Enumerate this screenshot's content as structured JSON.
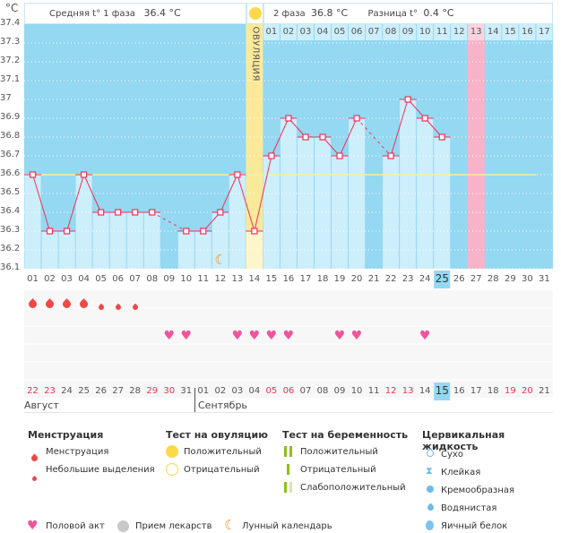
{
  "y_unit": "°C",
  "header": {
    "phase1_label": "Средняя t° 1 фаза",
    "phase1_value": "36.4 °C",
    "phase2_label": "2 фаза",
    "phase2_value": "36.8 °C",
    "diff_label": "Разница t°",
    "diff_value": "0.4 °C",
    "ovulation_label": "ОВУЛЯЦИЯ"
  },
  "colors": {
    "background": "#94d8f2",
    "bar": "#cdeefb",
    "line": "#f0305a",
    "ovulation": "#fbe99a",
    "highlight_day": "#f9b3c8",
    "coverline": "#f3f0a8"
  },
  "chart_data": {
    "type": "line",
    "ylim": [
      36.1,
      37.4
    ],
    "yticks": [
      "37.4",
      "37.3",
      "37.2",
      "37.1",
      "37",
      "36.9",
      "36.8",
      "36.7",
      "36.6",
      "36.5",
      "36.4",
      "36.3",
      "36.2",
      "36.1"
    ],
    "coverline": 36.6,
    "ovulation_day": 14,
    "highlight_day": 27,
    "today_day": 25,
    "cycle_days": [
      "01",
      "02",
      "03",
      "04",
      "05",
      "06",
      "07",
      "08",
      "09",
      "10",
      "11",
      "12",
      "13",
      "14",
      "15",
      "16",
      "17",
      "18",
      "19",
      "20",
      "21",
      "22",
      "23",
      "24",
      "25",
      "26",
      "27",
      "28",
      "29",
      "30",
      "31"
    ],
    "temperatures": [
      36.6,
      36.3,
      36.3,
      36.6,
      36.4,
      36.4,
      36.4,
      36.4,
      null,
      36.3,
      36.3,
      36.4,
      36.6,
      36.3,
      36.7,
      36.9,
      36.8,
      36.8,
      36.7,
      36.9,
      null,
      36.7,
      37.0,
      36.9,
      36.8,
      null,
      null,
      null,
      null,
      null,
      null
    ],
    "post_ovulation_days": [
      "01",
      "02",
      "03",
      "04",
      "05",
      "06",
      "07",
      "08",
      "09",
      "10",
      "11",
      "12",
      "13",
      "14",
      "15",
      "16",
      "17"
    ],
    "moon_day": 12
  },
  "markers": {
    "menstruation_heavy": [
      1,
      2,
      3,
      4
    ],
    "menstruation_light": [
      5,
      6,
      7
    ],
    "intercourse": [
      9,
      10,
      13,
      14,
      15,
      16,
      19,
      20,
      24
    ]
  },
  "calendar": {
    "dates": [
      "22",
      "23",
      "24",
      "25",
      "26",
      "27",
      "28",
      "29",
      "30",
      "31",
      "01",
      "02",
      "03",
      "04",
      "05",
      "06",
      "07",
      "08",
      "09",
      "10",
      "11",
      "12",
      "13",
      "14",
      "15",
      "16",
      "17",
      "18",
      "19",
      "20",
      "21"
    ],
    "weekend": [
      1,
      2,
      8,
      9,
      15,
      16,
      22,
      23,
      29,
      30
    ],
    "months": [
      "Август",
      "Сентябрь"
    ]
  },
  "legend": {
    "menstruation": {
      "title": "Менструация",
      "items": [
        "Менструация",
        "Небольшие выделения"
      ]
    },
    "ovulation_test": {
      "title": "Тест на овуляцию",
      "items": [
        "Положительный",
        "Отрицательный"
      ]
    },
    "pregnancy_test": {
      "title": "Тест на беременность",
      "items": [
        "Положительный",
        "Отрицательный",
        "Слабоположительный"
      ]
    },
    "cervical": {
      "title": "Цервикальная жидкость",
      "items": [
        "Сухо",
        "Клейкая",
        "Кремообразная",
        "Водянистая",
        "Яичный белок"
      ]
    },
    "other": [
      "Половой акт",
      "Прием лекарств",
      "Лунный календарь"
    ]
  }
}
